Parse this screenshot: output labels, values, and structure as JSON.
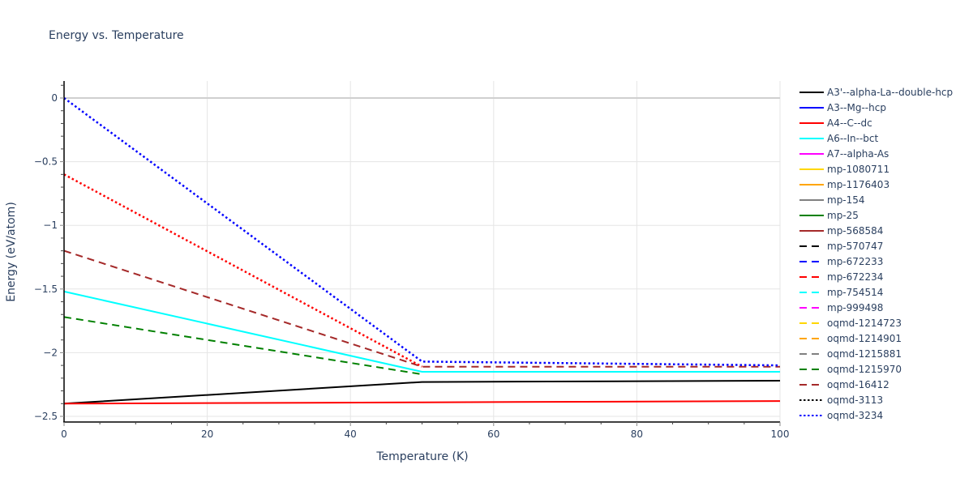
{
  "chart_data": {
    "type": "line",
    "title": "Energy vs. Temperature",
    "xlabel": "Temperature (K)",
    "ylabel": "Energy (eV/atom)",
    "xlim": [
      0,
      100
    ],
    "ylim": [
      -2.55,
      0.13
    ],
    "xticks": [
      0,
      20,
      40,
      60,
      80,
      100
    ],
    "xtick_labels": [
      "0",
      "20",
      "40",
      "60",
      "80",
      "100"
    ],
    "yticks": [
      0,
      -0.5,
      -1,
      -1.5,
      -2,
      -2.5
    ],
    "ytick_labels": [
      "0",
      "−0.5",
      "−1",
      "−1.5",
      "−2",
      "−2.5"
    ],
    "grid": true,
    "legend_position": "right",
    "series": [
      {
        "name": "A3'--alpha-La--double-hcp",
        "color": "#000000",
        "dash": "solid",
        "x": [
          0,
          50,
          100
        ],
        "y": [
          -2.4,
          -2.23,
          -2.22
        ]
      },
      {
        "name": "A3--Mg--hcp",
        "color": "#0000ff",
        "dash": "solid",
        "x": [],
        "y": []
      },
      {
        "name": "A4--C--dc",
        "color": "#ff0000",
        "dash": "solid",
        "x": [
          0,
          50,
          100
        ],
        "y": [
          -2.4,
          -2.39,
          -2.38
        ]
      },
      {
        "name": "A6--In--bct",
        "color": "#00ffff",
        "dash": "solid",
        "x": [
          0,
          50,
          100
        ],
        "y": [
          -1.52,
          -2.15,
          -2.15
        ]
      },
      {
        "name": "A7--alpha-As",
        "color": "#ff00ff",
        "dash": "solid",
        "x": [],
        "y": []
      },
      {
        "name": "mp-1080711",
        "color": "#ffd700",
        "dash": "solid",
        "x": [],
        "y": []
      },
      {
        "name": "mp-1176403",
        "color": "#ffa500",
        "dash": "solid",
        "x": [],
        "y": []
      },
      {
        "name": "mp-154",
        "color": "#808080",
        "dash": "solid",
        "x": [],
        "y": []
      },
      {
        "name": "mp-25",
        "color": "#008000",
        "dash": "solid",
        "x": [],
        "y": []
      },
      {
        "name": "mp-568584",
        "color": "#a52a2a",
        "dash": "solid",
        "x": [],
        "y": []
      },
      {
        "name": "mp-570747",
        "color": "#000000",
        "dash": "dash",
        "x": [],
        "y": []
      },
      {
        "name": "mp-672233",
        "color": "#0000ff",
        "dash": "dash",
        "x": [],
        "y": []
      },
      {
        "name": "mp-672234",
        "color": "#ff0000",
        "dash": "dash",
        "x": [],
        "y": []
      },
      {
        "name": "mp-754514",
        "color": "#00ffff",
        "dash": "dash",
        "x": [],
        "y": []
      },
      {
        "name": "mp-999498",
        "color": "#ff00ff",
        "dash": "dash",
        "x": [],
        "y": []
      },
      {
        "name": "oqmd-1214723",
        "color": "#ffd700",
        "dash": "dash",
        "x": [],
        "y": []
      },
      {
        "name": "oqmd-1214901",
        "color": "#ffa500",
        "dash": "dash",
        "x": [],
        "y": []
      },
      {
        "name": "oqmd-1215881",
        "color": "#808080",
        "dash": "dash",
        "x": [],
        "y": []
      },
      {
        "name": "oqmd-1215970",
        "color": "#008000",
        "dash": "dash",
        "x": [
          0,
          50
        ],
        "y": [
          -1.72,
          -2.17
        ]
      },
      {
        "name": "oqmd-16412",
        "color": "#a52a2a",
        "dash": "dash",
        "x": [
          0,
          50,
          100
        ],
        "y": [
          -1.2,
          -2.11,
          -2.11
        ]
      },
      {
        "name": "oqmd-3113",
        "color": "#000000",
        "dash": "dot",
        "x": [],
        "y": []
      },
      {
        "name": "oqmd-3234",
        "color": "#0000ff",
        "dash": "dot",
        "x": [
          0,
          50,
          100
        ],
        "y": [
          0.0,
          -2.07,
          -2.1
        ]
      }
    ],
    "unlisted_series": [
      {
        "name": "",
        "color": "#ff0000",
        "dash": "dot",
        "x": [
          0,
          50
        ],
        "y": [
          -0.6,
          -2.11
        ]
      }
    ]
  }
}
